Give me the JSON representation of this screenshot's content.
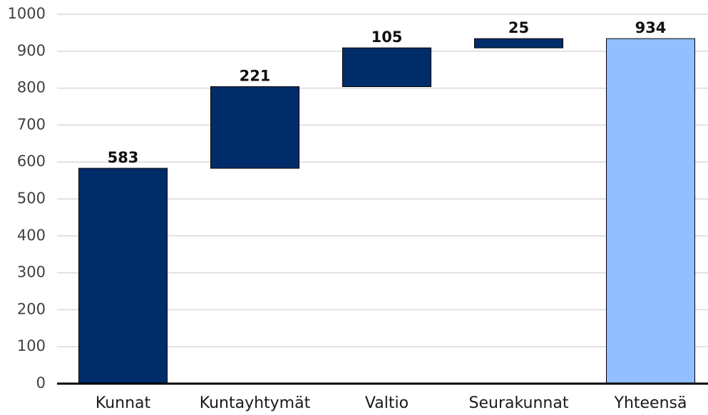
{
  "chart_data": {
    "type": "waterfall",
    "categories": [
      "Kunnat",
      "Kuntayhtymät",
      "Valtio",
      "Seurakunnat",
      "Yhteensä"
    ],
    "values": [
      583,
      221,
      105,
      25,
      934
    ],
    "is_total": [
      false,
      false,
      false,
      false,
      true
    ],
    "colors": [
      "#002d6a",
      "#002d6a",
      "#002d6a",
      "#002d6a",
      "#92bfff"
    ],
    "ylim": [
      0,
      1000
    ],
    "yticks": [
      0,
      100,
      200,
      300,
      400,
      500,
      600,
      700,
      800,
      900,
      1000
    ],
    "grid": true
  }
}
